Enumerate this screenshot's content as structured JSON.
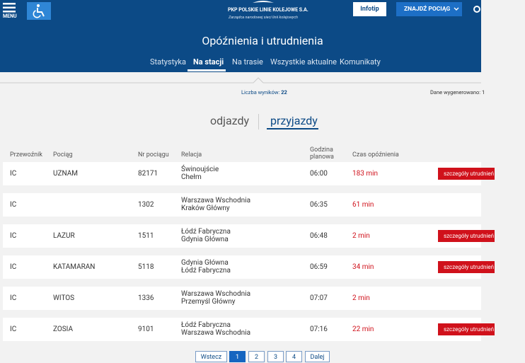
{
  "header": {
    "menu": "MENU",
    "logo_title": "PKP POLSKIE LINIE KOLEJOWE S.A.",
    "logo_subtitle": "Zarządca narodowej sieci linii kolejowych",
    "infotip": "Infotip",
    "find_train": "ZNAJDŹ POCIĄG",
    "page_title": "Opóźnienia i utrudnienia",
    "tabs": [
      "Statystyka",
      "Na stacji",
      "Na trasie",
      "Wszystkie aktualne",
      "Komunikaty"
    ]
  },
  "summary": {
    "results_label": "Liczba wyników:",
    "results_count": "22",
    "generated": "Dane wygenerowano: 1"
  },
  "toggle": [
    "odjazdy",
    "przyjazdy"
  ],
  "table": {
    "columns": [
      "Przewoźnik",
      "Pociąg",
      "Nr pociągu",
      "Relacja",
      "Godzina planowa",
      "Czas opóźnienia"
    ],
    "rows": [
      {
        "carrier": "IC",
        "name": "UZNAM",
        "number": "82171",
        "route": [
          "Świnoujście",
          "Chełm"
        ],
        "time": "06:00",
        "delay": "183 min",
        "details": "szczegóły utrudnień"
      },
      {
        "carrier": "IC",
        "number": "1302",
        "route": [
          "Warszawa Wschodnia",
          "Kraków Główny"
        ],
        "time": "06:35",
        "delay": "61 min"
      },
      {
        "carrier": "IC",
        "name": "LAZUR",
        "number": "1511",
        "route": [
          "Łódź Fabryczna",
          "Gdynia Główna"
        ],
        "time": "06:48",
        "delay": "2 min",
        "details": "szczegóły utrudnień"
      },
      {
        "carrier": "IC",
        "name": "KATAMARAN",
        "number": "5118",
        "route": [
          "Gdynia Główna",
          "Łódź Fabryczna"
        ],
        "time": "06:59",
        "delay": "34 min",
        "details": "szczegóły utrudnień"
      },
      {
        "carrier": "IC",
        "name": "WITOS",
        "number": "1336",
        "route": [
          "Warszawa Wschodnia",
          "Przemyśl Główny"
        ],
        "time": "07:07",
        "delay": "2 min"
      },
      {
        "carrier": "IC",
        "name": "ZOSIA",
        "number": "9101",
        "route": [
          "Łódź Fabryczna",
          "Warszawa Wschodnia"
        ],
        "time": "07:16",
        "delay": "22 min",
        "details": "szczegóły utrudnień"
      }
    ]
  },
  "pagination": {
    "prev": "Wstecz",
    "pages": [
      "1",
      "2",
      "3",
      "4"
    ],
    "next": "Dalej"
  }
}
